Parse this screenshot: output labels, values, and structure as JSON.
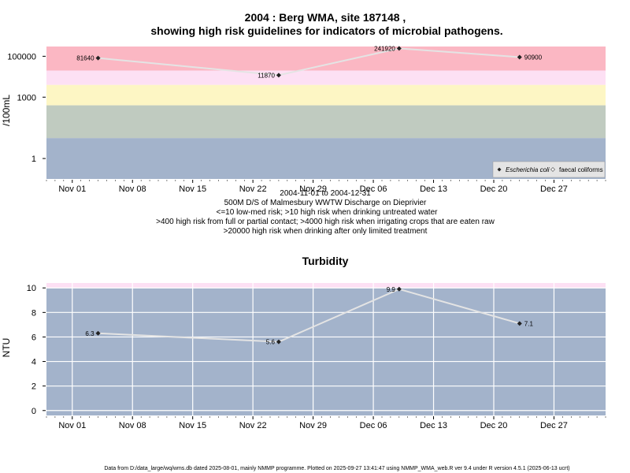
{
  "chart_data": [
    {
      "type": "line",
      "title": "2004 : Berg WMA, site 187148 ,",
      "subtitle": "showing high risk guidelines for indicators of microbial pathogens.",
      "ylabel": "/100mL",
      "y_scale": "log",
      "y_ticks": [
        "1",
        "1000",
        "100000"
      ],
      "ylim": [
        0.1,
        300000
      ],
      "x_ticks": [
        "Nov 01",
        "Nov 08",
        "Nov 15",
        "Nov 22",
        "Nov 29",
        "Dec 06",
        "Dec 13",
        "Dec 20",
        "Dec 27"
      ],
      "xlim": [
        "2004-10-29",
        "2005-01-02"
      ],
      "series": [
        {
          "name": "Escherichia coli",
          "x": [
            "2004-11-04",
            "2004-11-25",
            "2004-12-09",
            "2004-12-23"
          ],
          "values": [
            81640,
            11870,
            241920,
            90900
          ],
          "labels": [
            "81640",
            "11870",
            "241920",
            "90900"
          ]
        }
      ],
      "legend": {
        "position": "bottom-right",
        "items": [
          "Escherichia coli",
          "faecal coliforms"
        ]
      },
      "bands": [
        {
          "from": 0.1,
          "to": 10,
          "color": "#a3b3cb"
        },
        {
          "from": 10,
          "to": 400,
          "color": "#c0cbc0"
        },
        {
          "from": 400,
          "to": 4000,
          "color": "#fdf6c4"
        },
        {
          "from": 4000,
          "to": 20000,
          "color": "#fde0f4"
        },
        {
          "from": 20000,
          "to": 300000,
          "color": "#fbb7c3"
        }
      ],
      "notes": [
        "2004-11-01 to 2004-12-31",
        "500M D/S of Malmesbury WWTW Discharge on Dieprivier",
        "<=10 low-med risk; >10 high risk when drinking untreated water",
        ">400 high risk from full or partial contact; >4000 high risk when irrigating crops that are eaten raw",
        ">20000 high risk when drinking after only limited treatment"
      ]
    },
    {
      "type": "line",
      "title": "Turbidity",
      "ylabel": "NTU",
      "y_ticks": [
        "0",
        "2",
        "4",
        "6",
        "8",
        "10"
      ],
      "ylim": [
        -0.4,
        10.4
      ],
      "x_ticks": [
        "Nov 01",
        "Nov 08",
        "Nov 15",
        "Nov 22",
        "Nov 29",
        "Dec 06",
        "Dec 13",
        "Dec 20",
        "Dec 27"
      ],
      "xlim": [
        "2004-10-29",
        "2005-01-02"
      ],
      "grid": true,
      "series": [
        {
          "x": [
            "2004-11-04",
            "2004-11-25",
            "2004-12-09",
            "2004-12-23"
          ],
          "values": [
            6.3,
            5.6,
            9.9,
            7.1
          ],
          "labels": [
            "6.3",
            "5.6",
            "9.9",
            "7.1"
          ]
        }
      ],
      "bands": [
        {
          "from": -0.4,
          "to": 10,
          "color": "#a3b3cb"
        },
        {
          "from": 10,
          "to": 10.4,
          "color": "#fde0f4"
        }
      ]
    }
  ],
  "footer": "Data from D:/data_large/wq/wms.db dated 2025-08-01, mainly NMMP programme. Plotted on 2025-09-27 13:41:47 using NMMP_WMA_web.R ver 9.4 under R version 4.5.1 (2025-06-13 ucrt)",
  "colors": {
    "line": "#e4e4e4",
    "marker": "#222222",
    "grid": "#ffffff",
    "axis": "#000000"
  }
}
